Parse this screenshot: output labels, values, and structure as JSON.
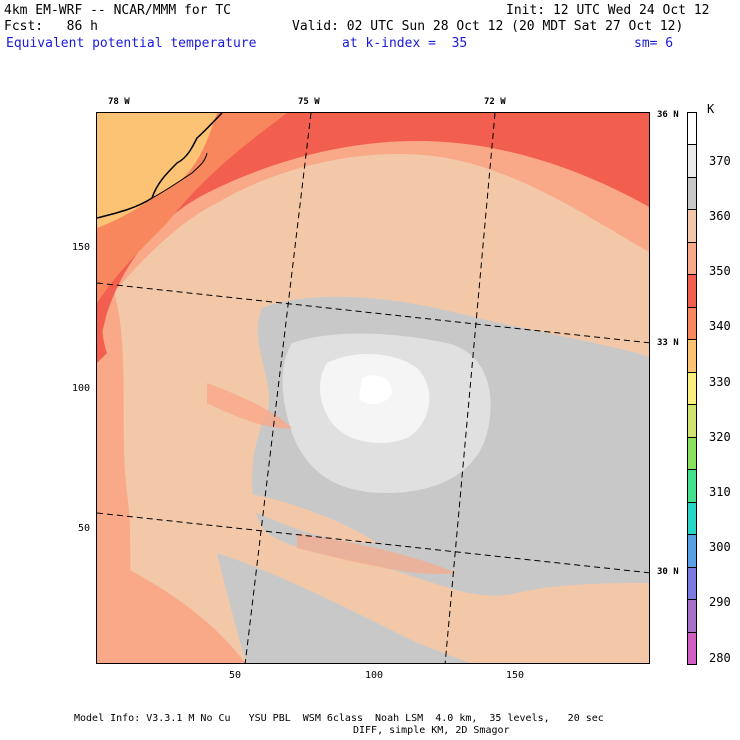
{
  "header": {
    "line1_left": "4km EM-WRF -- NCAR/MMM for TC",
    "line1_right": "Init: 12 UTC Wed 24 Oct 12",
    "line2_left": "Fcst:   86 h",
    "line2_right": "Valid: 02 UTC Sun 28 Oct 12 (20 MDT Sat 27 Oct 12)",
    "line3_left": "Equivalent potential temperature",
    "line3_mid": "at k-index =  35",
    "line3_right": "sm= 6"
  },
  "longitude_labels": [
    "78 W",
    "75 W",
    "72 W"
  ],
  "latitude_labels": [
    "36 N",
    "33 N",
    "30 N"
  ],
  "x_axis_ticks": [
    "50",
    "100",
    "150"
  ],
  "y_axis_ticks": [
    "150",
    "100",
    "50"
  ],
  "colorbar": {
    "unit": "K",
    "labels": [
      "370",
      "360",
      "350",
      "340",
      "330",
      "320",
      "310",
      "300",
      "290",
      "280"
    ],
    "colors": [
      "#ffffff",
      "#ebebeb",
      "#c8c8c8",
      "#f3c8a8",
      "#f9a888",
      "#f25f4e",
      "#f8875d",
      "#fbc373",
      "#f8ef7e",
      "#cfe36e",
      "#8ae05f",
      "#45e08c",
      "#28d4c8",
      "#58a0e6",
      "#7b7ae0",
      "#a871c8",
      "#d15ec4"
    ]
  },
  "footer": {
    "line1": "Model Info: V3.3.1 M No Cu   YSU PBL  WSM 6class  Noah LSM  4.0 km,  35 levels,   20 sec",
    "line2": "DIFF, simple KM, 2D Smagor"
  }
}
